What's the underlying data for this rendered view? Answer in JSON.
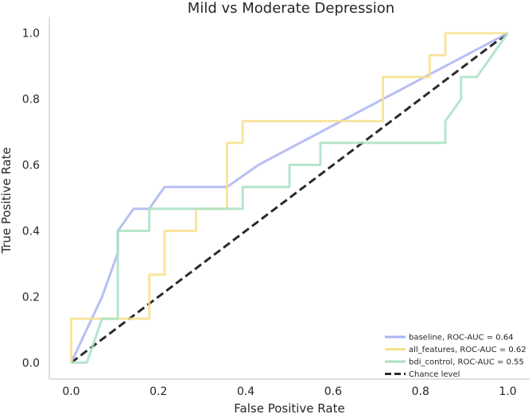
{
  "chart_data": {
    "type": "line",
    "title": "Mild vs Moderate Depression",
    "xlabel": "False Positive Rate",
    "ylabel": "True Positive Rate",
    "xlim": [
      -0.05,
      1.05
    ],
    "ylim": [
      -0.05,
      1.05
    ],
    "xticks": [
      0.0,
      0.2,
      0.4,
      0.6,
      0.8,
      1.0
    ],
    "yticks": [
      0.0,
      0.2,
      0.4,
      0.6,
      0.8,
      1.0
    ],
    "xtick_labels": [
      "0.0",
      "0.2",
      "0.4",
      "0.6",
      "0.8",
      "1.0"
    ],
    "ytick_labels": [
      "0.0",
      "0.2",
      "0.4",
      "0.6",
      "0.8",
      "1.0"
    ],
    "legend_position": "lower-right",
    "series": [
      {
        "name": "baseline",
        "label": "baseline, ROC-AUC = 0.64",
        "color": "#aab4f2",
        "x": [
          0.0,
          0.071,
          0.107,
          0.107,
          0.143,
          0.179,
          0.214,
          0.357,
          0.429,
          1.0
        ],
        "y": [
          0.0,
          0.2,
          0.333,
          0.4,
          0.467,
          0.467,
          0.533,
          0.533,
          0.6,
          1.0
        ]
      },
      {
        "name": "all_features",
        "label": "all_features, ROC-AUC = 0.62",
        "color": "#f8e08e",
        "x": [
          0.0,
          0.0,
          0.179,
          0.179,
          0.214,
          0.214,
          0.286,
          0.286,
          0.357,
          0.357,
          0.393,
          0.393,
          0.714,
          0.714,
          0.821,
          0.821,
          0.857,
          0.857,
          1.0
        ],
        "y": [
          0.0,
          0.133,
          0.133,
          0.267,
          0.267,
          0.4,
          0.4,
          0.467,
          0.467,
          0.667,
          0.667,
          0.733,
          0.733,
          0.867,
          0.867,
          0.933,
          0.933,
          1.0,
          1.0
        ]
      },
      {
        "name": "bdi_control",
        "label": "bdi_control, ROC-AUC = 0.55",
        "color": "#a9e2c4",
        "x": [
          0.0,
          0.036,
          0.071,
          0.071,
          0.107,
          0.107,
          0.179,
          0.179,
          0.393,
          0.393,
          0.5,
          0.5,
          0.571,
          0.571,
          0.857,
          0.857,
          0.893,
          0.893,
          0.929,
          1.0
        ],
        "y": [
          0.0,
          0.0,
          0.133,
          0.133,
          0.133,
          0.4,
          0.4,
          0.467,
          0.467,
          0.533,
          0.533,
          0.6,
          0.6,
          0.667,
          0.667,
          0.733,
          0.8,
          0.867,
          0.867,
          1.0
        ]
      },
      {
        "name": "chance",
        "label": "Chance level",
        "color": "#2b2b2b",
        "dashed": true,
        "x": [
          0.0,
          1.0
        ],
        "y": [
          0.0,
          1.0
        ]
      }
    ]
  }
}
